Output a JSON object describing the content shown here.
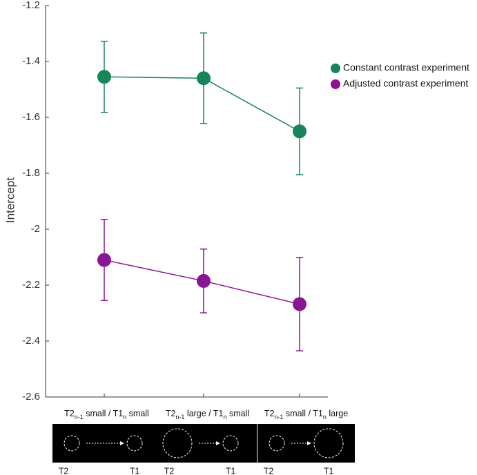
{
  "chart_data": {
    "type": "line",
    "y_label": "Intercept",
    "categories": [
      [
        "T2",
        "n-1",
        " small / T1",
        "n",
        " small"
      ],
      [
        "T2",
        "n-1",
        " large / T1",
        "n",
        " small"
      ],
      [
        "T2",
        "n-1",
        " small / T1",
        "n",
        " large"
      ]
    ],
    "series": [
      {
        "name": "Constant contrast experiment",
        "color": "#18845a",
        "values": [
          -1.455,
          -1.46,
          -1.65
        ],
        "errors": [
          0.127,
          0.162,
          0.155
        ]
      },
      {
        "name": "Adjusted contrast experiment",
        "color": "#8a1592",
        "values": [
          -2.11,
          -2.185,
          -2.268
        ],
        "errors": [
          0.145,
          0.114,
          0.167
        ]
      }
    ],
    "ylim": [
      -2.6,
      -1.2
    ],
    "yticks": [
      -2.6,
      -2.4,
      -2.2,
      -2,
      -1.8,
      -1.6,
      -1.4,
      -1.2
    ],
    "legend": "upper right",
    "panels": [
      {
        "left": "T2",
        "right": "T1"
      },
      {
        "left": "T2",
        "right": "T1"
      },
      {
        "left": "T2",
        "right": "T1"
      }
    ]
  }
}
